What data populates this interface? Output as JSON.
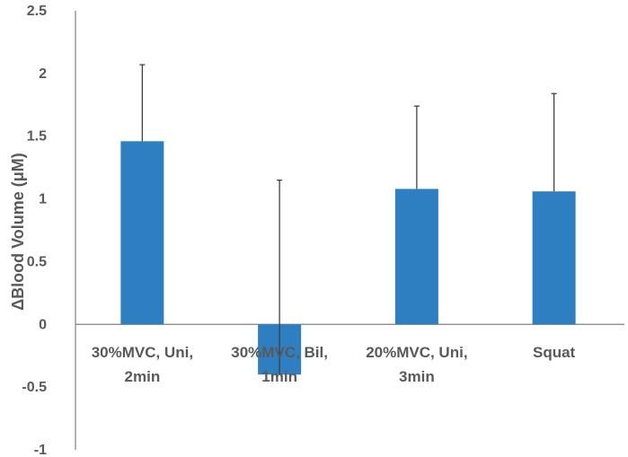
{
  "chart_data": {
    "type": "bar",
    "categories": [
      [
        "30%MVC, Uni,",
        "2min"
      ],
      [
        "30%MVC, Bil,",
        "1min"
      ],
      [
        "20%MVC, Uni,",
        "3min"
      ],
      [
        "Squat"
      ]
    ],
    "values": [
      1.46,
      -0.4,
      1.08,
      1.06
    ],
    "error_upper": [
      0.61,
      1.55,
      0.66,
      0.78
    ],
    "ylabel": "ΔBlood Volume (μM)",
    "ylim": [
      -1,
      2.5
    ],
    "yticks": [
      "2.5",
      "2",
      "1.5",
      "1",
      "0.5",
      "0",
      "-0.5",
      "-1"
    ],
    "ytick_values": [
      2.5,
      2,
      1.5,
      1,
      0.5,
      0,
      -0.5,
      -1
    ],
    "bar_color": "#2e7fc2",
    "error_color": "#404040",
    "axis_color": "#808080",
    "grid": false,
    "legend": "none"
  }
}
